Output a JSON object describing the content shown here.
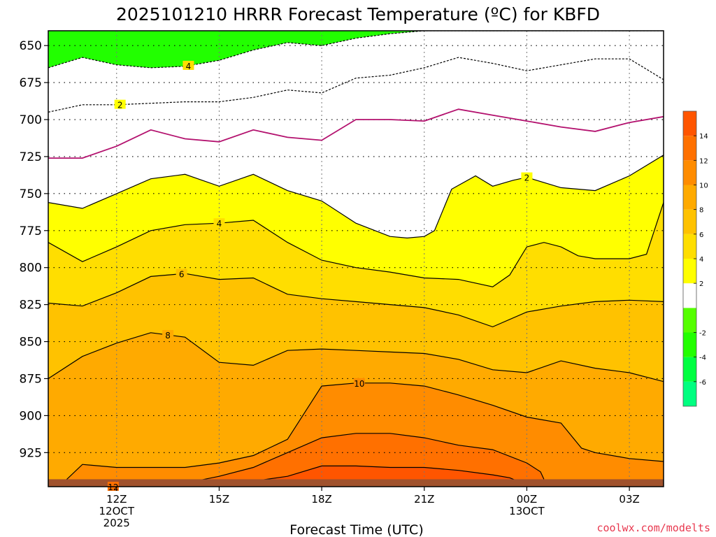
{
  "chart_data": {
    "type": "contour",
    "title": "2025101210 HRRR Forecast Temperature (ºC) for KBFD",
    "xlabel": "Forecast Time (UTC)",
    "ylabel": "",
    "credit": "coolwx.com/modelts",
    "x_ticks": [
      {
        "hour": 0,
        "label": "12Z",
        "sub1": "12OCT",
        "sub2": "2025"
      },
      {
        "hour": 3,
        "label": "15Z",
        "sub1": "",
        "sub2": ""
      },
      {
        "hour": 6,
        "label": "18Z",
        "sub1": "",
        "sub2": ""
      },
      {
        "hour": 9,
        "label": "21Z",
        "sub1": "",
        "sub2": ""
      },
      {
        "hour": 12,
        "label": "00Z",
        "sub1": "13OCT",
        "sub2": ""
      },
      {
        "hour": 15,
        "label": "03Z",
        "sub1": "",
        "sub2": ""
      }
    ],
    "x_range_hours": [
      -2,
      16
    ],
    "y_ticks_hpa": [
      650,
      675,
      700,
      725,
      750,
      775,
      800,
      825,
      850,
      875,
      900,
      925
    ],
    "y_range_hpa": [
      640,
      948
    ],
    "ground_level_hpa": 943,
    "grid": true,
    "colorbar": {
      "levels": [
        -8,
        -6,
        -4,
        -2,
        0,
        2,
        4,
        6,
        8,
        10,
        12,
        14,
        16
      ],
      "tick_labels": [
        "-6",
        "-4",
        "-2",
        "2",
        "4",
        "6",
        "8",
        "10",
        "12",
        "14"
      ],
      "colors": [
        "#00ff80",
        "#00ff40",
        "#22ff00",
        "#55ff00",
        "#ffffff",
        "#ffff00",
        "#ffde00",
        "#ffc200",
        "#ffaa00",
        "#ff8c00",
        "#ff7000",
        "#ff5500"
      ]
    },
    "contours": [
      {
        "level": 4,
        "label": "4",
        "x": [
          -2,
          -1,
          0,
          1,
          2,
          3,
          4,
          5,
          6,
          7,
          8,
          9,
          10,
          11,
          12,
          13,
          14,
          15,
          16
        ],
        "y": [
          665,
          658,
          663,
          665,
          664,
          660,
          653,
          648,
          650,
          645,
          642,
          640,
          640,
          640,
          640,
          640,
          640,
          640,
          640
        ]
      },
      {
        "level": 2,
        "label": "2",
        "x": [
          -2,
          -1,
          0,
          1,
          2,
          3,
          4,
          5,
          6,
          7,
          8,
          9,
          10,
          11,
          12,
          13,
          14,
          15,
          15.5,
          16
        ],
        "y": [
          695,
          690,
          690,
          689,
          688,
          688,
          685,
          680,
          682,
          672,
          670,
          665,
          658,
          662,
          667,
          663,
          659,
          659,
          666,
          673
        ]
      },
      {
        "level": 0,
        "label": "",
        "x": [
          -2,
          -1,
          0,
          1,
          2,
          3,
          4,
          5,
          6,
          7,
          8,
          9,
          10,
          11,
          12,
          13,
          14,
          15,
          16
        ],
        "y": [
          726,
          726,
          718,
          707,
          713,
          715,
          707,
          712,
          714,
          700,
          700,
          701,
          693,
          697,
          701,
          705,
          708,
          702,
          698
        ]
      },
      {
        "level": 2,
        "label": "2",
        "x": [
          -2,
          -1,
          0,
          1,
          2,
          3,
          4,
          5,
          6,
          7,
          8,
          8.5,
          9,
          9.3,
          9.8,
          10.5,
          11,
          11.6,
          12,
          13,
          14,
          15,
          16
        ],
        "y": [
          756,
          760,
          750,
          740,
          737,
          745,
          737,
          748,
          755,
          770,
          779,
          780,
          779,
          775,
          747,
          738,
          745,
          741,
          739,
          746,
          748,
          738,
          724
        ]
      },
      {
        "level": 4,
        "label": "4",
        "x": [
          -2,
          -1,
          0,
          1,
          2,
          3,
          4,
          5,
          6,
          7,
          8,
          9,
          10,
          11,
          11.5,
          12,
          12.5,
          13,
          13.5,
          14,
          15,
          15.5,
          16
        ],
        "y": [
          783,
          796,
          786,
          775,
          771,
          770,
          768,
          783,
          795,
          800,
          803,
          807,
          808,
          813,
          805,
          786,
          783,
          786,
          792,
          794,
          794,
          791,
          756
        ]
      },
      {
        "level": 6,
        "label": "6",
        "x": [
          -2,
          -1,
          0,
          1,
          2,
          3,
          4,
          5,
          6,
          7,
          8,
          9,
          10,
          11,
          12,
          13,
          14,
          15,
          16
        ],
        "y": [
          824,
          826,
          817,
          806,
          804,
          808,
          807,
          818,
          821,
          823,
          825,
          827,
          832,
          840,
          830,
          826,
          823,
          822,
          823
        ]
      },
      {
        "level": 8,
        "label": "8",
        "x": [
          -2,
          -1,
          0,
          1,
          2,
          3,
          4,
          5,
          6,
          7,
          8,
          9,
          10,
          11,
          12,
          13,
          14,
          15,
          16
        ],
        "y": [
          875,
          860,
          851,
          844,
          847,
          864,
          866,
          856,
          855,
          856,
          857,
          858,
          862,
          869,
          871,
          863,
          868,
          871,
          877
        ]
      },
      {
        "level": 10,
        "label": "10",
        "x": [
          -2,
          -1.5,
          -1,
          0,
          1,
          2,
          3,
          4,
          5,
          6,
          7,
          8,
          9,
          10,
          11,
          12,
          13,
          13.6,
          14,
          15,
          16
        ],
        "y": [
          948,
          944,
          933,
          935,
          935,
          935,
          932,
          927,
          916,
          880,
          878,
          878,
          880,
          886,
          893,
          901,
          905,
          922,
          925,
          929,
          931
        ]
      },
      {
        "level": 12,
        "label": "12",
        "x": [
          1.5,
          3,
          4,
          5,
          6,
          7,
          8,
          9,
          10,
          11,
          12,
          12.4,
          12.5
        ],
        "y": [
          948,
          941,
          935,
          925,
          915,
          912,
          912,
          915,
          920,
          923,
          932,
          938,
          943
        ]
      },
      {
        "level": 14,
        "label": "",
        "x": [
          3.8,
          5,
          6,
          7,
          8,
          9,
          10,
          11,
          11.5,
          11.8
        ],
        "y": [
          945,
          941,
          934,
          934,
          935,
          935,
          937,
          940,
          942,
          945
        ]
      }
    ]
  }
}
